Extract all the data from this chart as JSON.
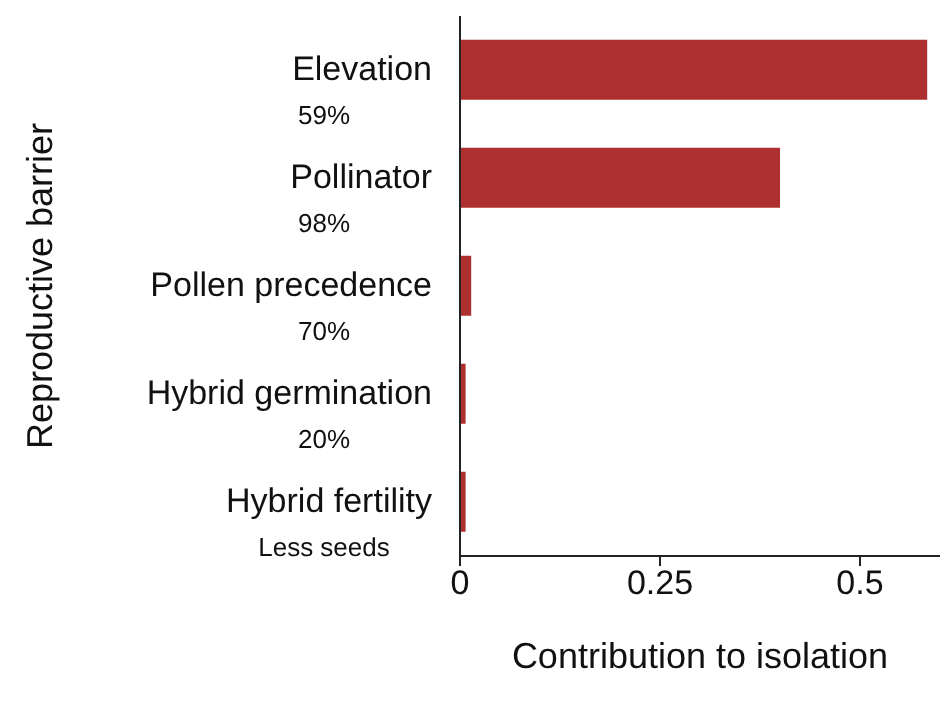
{
  "chart_data": {
    "type": "bar",
    "orientation": "horizontal",
    "categories": [
      "Elevation\n59%",
      "Pollinator\n98%",
      "Pollen precedence\n70%",
      "Hybrid germination\n20%",
      "Hybrid fertility\nLess seeds"
    ],
    "values": [
      0.584,
      0.4,
      0.014,
      0.007,
      0.007
    ],
    "color": "#ae2f2f",
    "xlim": [
      0,
      0.6
    ],
    "xticks": [
      0,
      0.25,
      0.5
    ],
    "xlabel": "Contribution to isolation",
    "ylabel": "Reproductive barrier"
  }
}
